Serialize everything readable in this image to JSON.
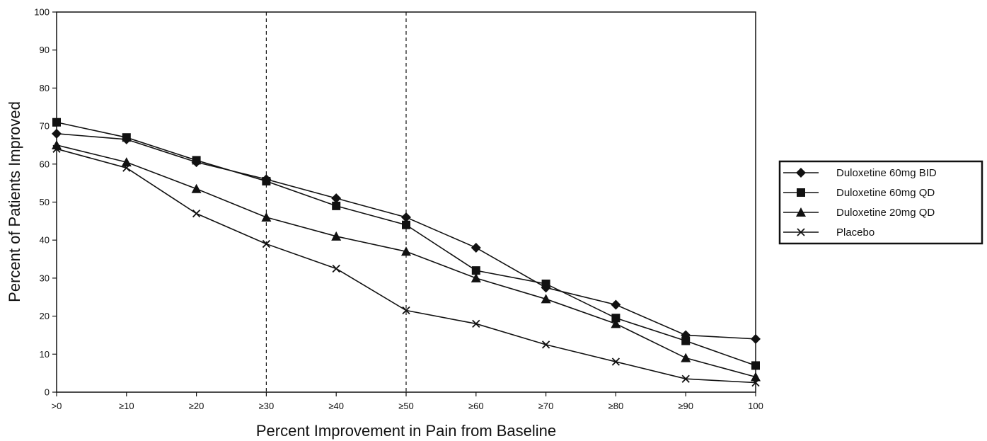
{
  "chart_data": {
    "type": "line",
    "xlabel": "Percent Improvement in Pain from Baseline",
    "ylabel": "Percent of Patients Improved",
    "categories": [
      ">0",
      "≥10",
      "≥20",
      "≥30",
      "≥40",
      "≥50",
      "≥60",
      "≥70",
      "≥80",
      "≥90",
      "100"
    ],
    "ylim": [
      0,
      100
    ],
    "yticks": [
      0,
      10,
      20,
      30,
      40,
      50,
      60,
      70,
      80,
      90,
      100
    ],
    "reference_lines_at": [
      "≥30",
      "≥50"
    ],
    "grid": false,
    "legend_position": "right",
    "series": [
      {
        "name": "Duloxetine 60mg BID",
        "marker": "diamond",
        "values": [
          68,
          66.5,
          60.5,
          56,
          51,
          46,
          38,
          27.5,
          23,
          15,
          14
        ]
      },
      {
        "name": "Duloxetine 60mg QD",
        "marker": "square",
        "values": [
          71,
          67,
          61,
          55.5,
          49,
          44,
          32,
          28.5,
          19.5,
          13.5,
          7
        ]
      },
      {
        "name": "Duloxetine 20mg QD",
        "marker": "triangle",
        "values": [
          65,
          60.5,
          53.5,
          46,
          41,
          37,
          30,
          24.5,
          18,
          9,
          4
        ]
      },
      {
        "name": "Placebo",
        "marker": "x",
        "values": [
          64,
          59,
          47,
          39,
          32.5,
          21.5,
          18,
          12.5,
          8,
          3.5,
          2.5
        ]
      }
    ]
  }
}
